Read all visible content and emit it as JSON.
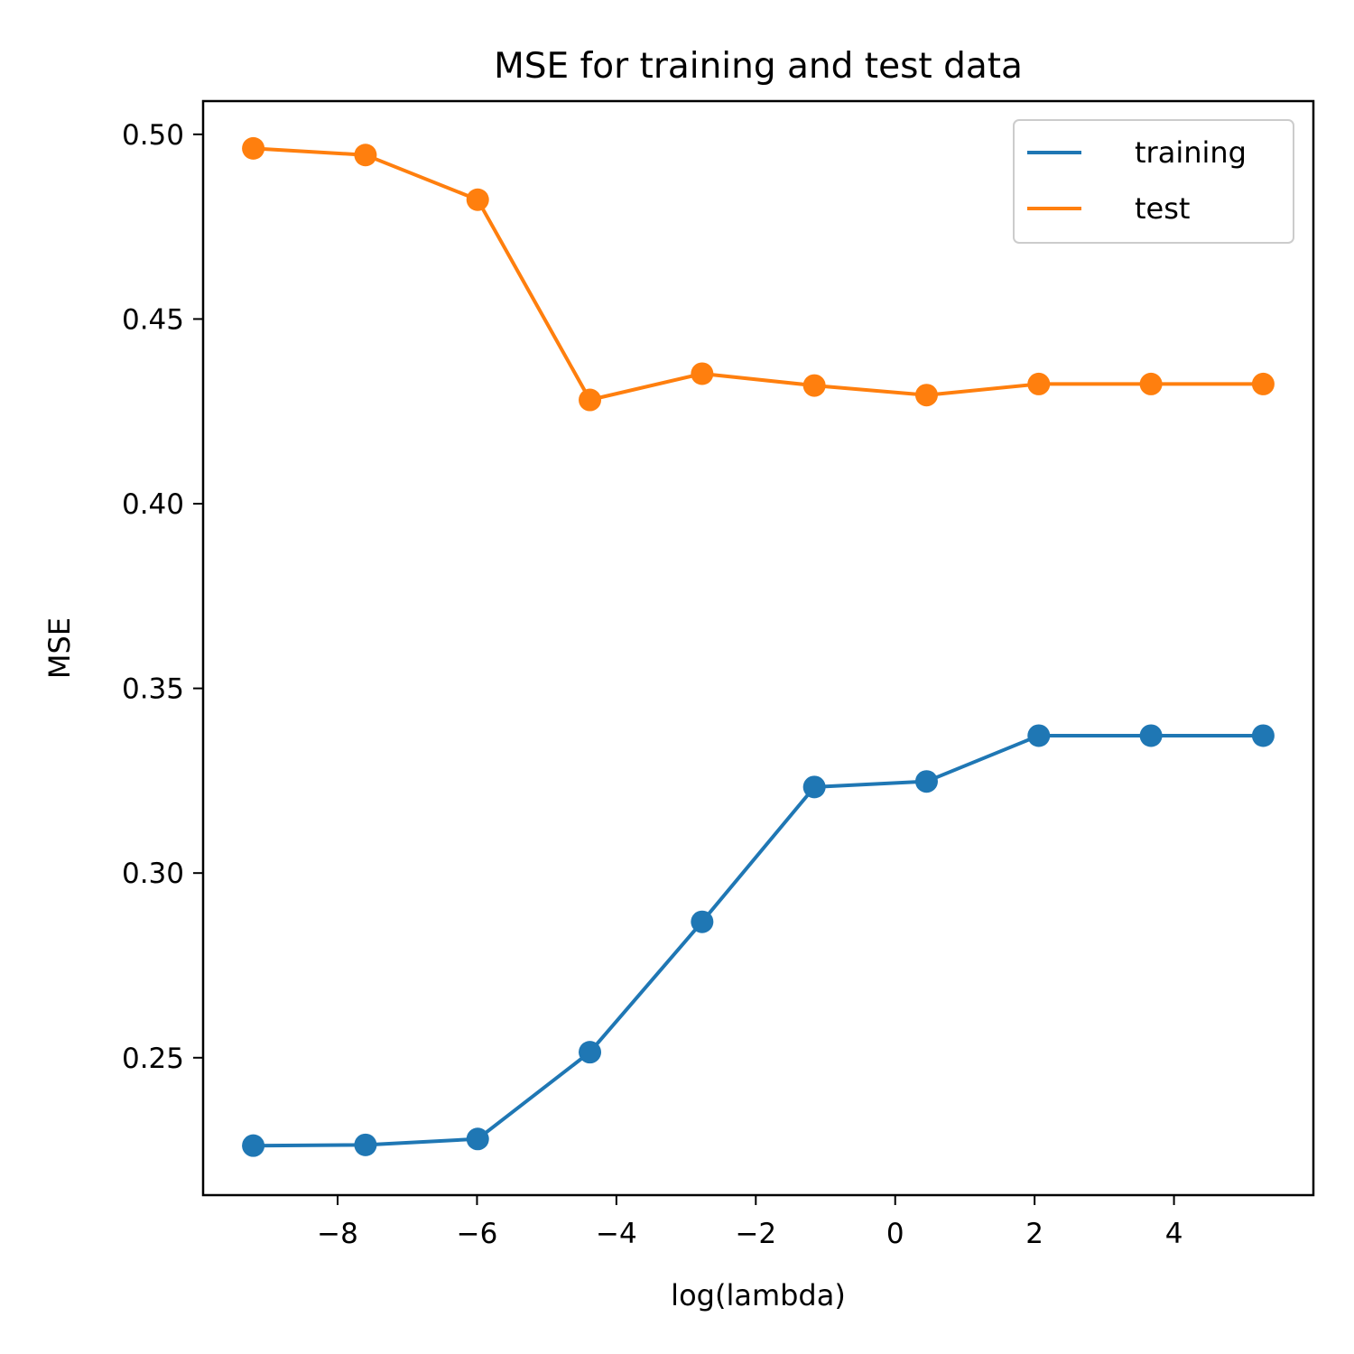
{
  "chart_data": {
    "type": "line",
    "title": "MSE for training and test data",
    "xlabel": "log(lambda)",
    "ylabel": "MSE",
    "x": [
      -9.21,
      -7.6,
      -5.99,
      -4.38,
      -2.77,
      -1.16,
      0.45,
      2.06,
      3.67,
      5.28
    ],
    "series": [
      {
        "name": "training",
        "color": "#1f77b4",
        "values": [
          0.2262,
          0.2264,
          0.228,
          0.2515,
          0.2868,
          0.3233,
          0.3248,
          0.3372,
          0.3372,
          0.3372
        ]
      },
      {
        "name": "test",
        "color": "#ff7f0e",
        "values": [
          0.4962,
          0.4944,
          0.4823,
          0.4281,
          0.4352,
          0.432,
          0.4294,
          0.4324,
          0.4324,
          0.4324
        ]
      }
    ],
    "xlim": [
      -9.93,
      6.0
    ],
    "ylim": [
      0.2128,
      0.509
    ],
    "xticks": [
      -8,
      -6,
      -4,
      -2,
      0,
      2,
      4
    ],
    "xtick_labels": [
      "−8",
      "−6",
      "−4",
      "−2",
      "0",
      "2",
      "4"
    ],
    "yticks": [
      0.25,
      0.3,
      0.35,
      0.4,
      0.45,
      0.5
    ],
    "ytick_labels": [
      "0.25",
      "0.30",
      "0.35",
      "0.40",
      "0.45",
      "0.50"
    ],
    "grid": false,
    "legend_position": "upper right"
  }
}
